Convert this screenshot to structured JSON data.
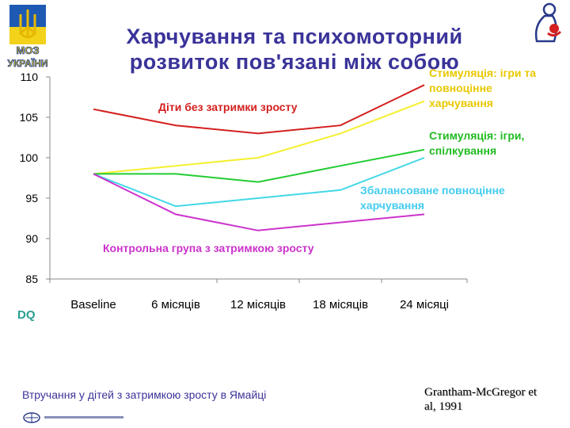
{
  "header": {
    "logo_text_line1": "МОЗ",
    "logo_text_line2": "УКРАЇНИ",
    "title_line1": "Харчування та психомоторний",
    "title_line2": "розвиток пов'язані між собою"
  },
  "footer": {
    "caption": "Втручання у дітей з затримкою зросту в Ямайці",
    "citation_line1": "Grantham-McGregor et",
    "citation_line2": "al, 1991"
  },
  "colors": {
    "title": "#3a3399",
    "axis_text": "#000000",
    "dq_label": "#2a9d8f"
  },
  "chart_data": {
    "type": "line",
    "categories": [
      "Baseline",
      "6 місяців",
      "12 місяців",
      "18 місяців",
      "24 місяці"
    ],
    "ylim": [
      85,
      110
    ],
    "yticks": [
      85,
      90,
      95,
      100,
      105,
      110
    ],
    "ylabel": "DQ",
    "grid": false,
    "series": [
      {
        "name": "Діти без затримки зросту",
        "color": "#d42020",
        "values": [
          106,
          104,
          103,
          104,
          109
        ]
      },
      {
        "name": "Стимуляція: ігри та повноцінне харчування",
        "color": "#f5f030",
        "values": [
          98,
          99,
          100,
          103,
          107
        ]
      },
      {
        "name": "Стимуляція: ігри, спілкування",
        "color": "#22cc33",
        "values": [
          98,
          98,
          97,
          99,
          101
        ]
      },
      {
        "name": "Збалансоване повноцінне харчування",
        "color": "#44d8e8",
        "values": [
          98,
          94,
          95,
          96,
          100
        ]
      },
      {
        "name": "Контрольна група з затримкою зросту",
        "color": "#cc33cc",
        "values": [
          98,
          93,
          91,
          92,
          93
        ]
      }
    ],
    "labels": [
      {
        "series": 0,
        "lines": [
          "Діти без затримки зросту"
        ],
        "color": "#d42020"
      },
      {
        "series": 1,
        "lines": [
          "Стимуляція: ігри та",
          "повноцінне",
          "харчування"
        ],
        "color": "#e8c800"
      },
      {
        "series": 2,
        "lines": [
          "Стимуляція: ігри,",
          "спілкування"
        ],
        "color": "#22bb22"
      },
      {
        "series": 3,
        "lines": [
          "Збалансоване повноцінне",
          "харчування"
        ],
        "color": "#44ccee"
      },
      {
        "series": 4,
        "lines": [
          "Контрольна група з затримкою зросту"
        ],
        "color": "#cc33cc"
      }
    ]
  }
}
